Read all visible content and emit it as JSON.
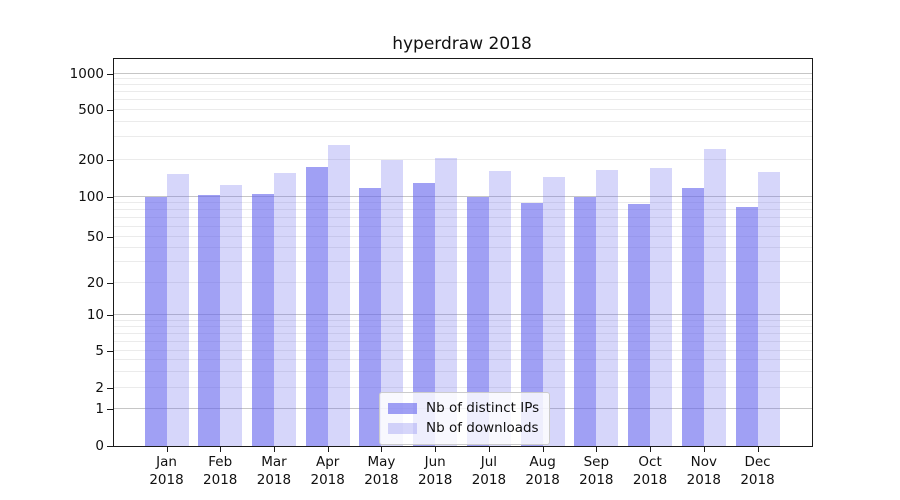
{
  "title": "hyperdraw 2018",
  "chart_data": {
    "type": "bar",
    "title": "hyperdraw 2018",
    "categories": [
      "Jan 2018",
      "Feb 2018",
      "Mar 2018",
      "Apr 2018",
      "May 2018",
      "Jun 2018",
      "Jul 2018",
      "Aug 2018",
      "Sep 2018",
      "Oct 2018",
      "Nov 2018",
      "Dec 2018"
    ],
    "series": [
      {
        "name": "Nb of distinct IPs",
        "color": "rgba(102,102,238,0.62)",
        "values": [
          100,
          105,
          107,
          174,
          118,
          130,
          100,
          91,
          100,
          89,
          119,
          85
        ]
      },
      {
        "name": "Nb of downloads",
        "color": "rgba(102,102,238,0.27)",
        "values": [
          153,
          125,
          156,
          260,
          200,
          207,
          162,
          145,
          165,
          172,
          241,
          160
        ]
      }
    ],
    "yscale": "symlog",
    "yticks": [
      0,
      1,
      2,
      5,
      10,
      20,
      50,
      100,
      200,
      500,
      1000
    ],
    "ylim": [
      0,
      1350
    ],
    "xlabel": "",
    "ylabel": "",
    "grid": "on",
    "legend_position": "lower-center-inside"
  },
  "colors": {
    "grid_major": "#c6c6c6",
    "grid_minor": "#ebebeb",
    "axis": "#1a1a1a",
    "background": "#ffffff",
    "legend_border": "#cccccc"
  }
}
